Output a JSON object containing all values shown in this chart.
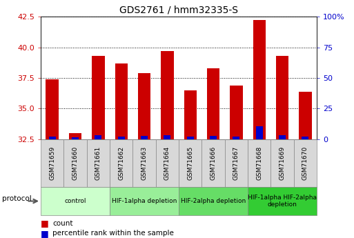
{
  "title": "GDS2761 / hmm32335-S",
  "samples": [
    "GSM71659",
    "GSM71660",
    "GSM71661",
    "GSM71662",
    "GSM71663",
    "GSM71664",
    "GSM71665",
    "GSM71666",
    "GSM71667",
    "GSM71668",
    "GSM71669",
    "GSM71670"
  ],
  "count_values": [
    37.4,
    33.0,
    39.3,
    38.7,
    37.9,
    39.7,
    36.5,
    38.3,
    36.9,
    42.2,
    39.3,
    36.4
  ],
  "percentile_values": [
    2.0,
    1.5,
    3.5,
    2.0,
    2.5,
    3.5,
    2.0,
    2.5,
    2.0,
    10.5,
    3.0,
    2.0
  ],
  "baseline": 32.5,
  "ylim_left": [
    32.5,
    42.5
  ],
  "yticks_left": [
    32.5,
    35.0,
    37.5,
    40.0,
    42.5
  ],
  "yticks_right_vals": [
    0,
    25,
    50,
    75,
    100
  ],
  "yticks_right_labels": [
    "0",
    "25",
    "50",
    "75",
    "100%"
  ],
  "bar_color_count": "#cc0000",
  "bar_color_pct": "#0000cc",
  "groups": [
    {
      "label": "control",
      "start": 0,
      "end": 2,
      "color": "#ccffcc"
    },
    {
      "label": "HIF-1alpha depletion",
      "start": 3,
      "end": 5,
      "color": "#99ee99"
    },
    {
      "label": "HIF-2alpha depletion",
      "start": 6,
      "end": 8,
      "color": "#66dd66"
    },
    {
      "label": "HIF-1alpha HIF-2alpha\ndepletion",
      "start": 9,
      "end": 11,
      "color": "#33cc33"
    }
  ],
  "left_ylabel_color": "#cc0000",
  "right_ylabel_color": "#0000cc",
  "sample_box_color": "#d8d8d8",
  "protocol_label": "protocol"
}
